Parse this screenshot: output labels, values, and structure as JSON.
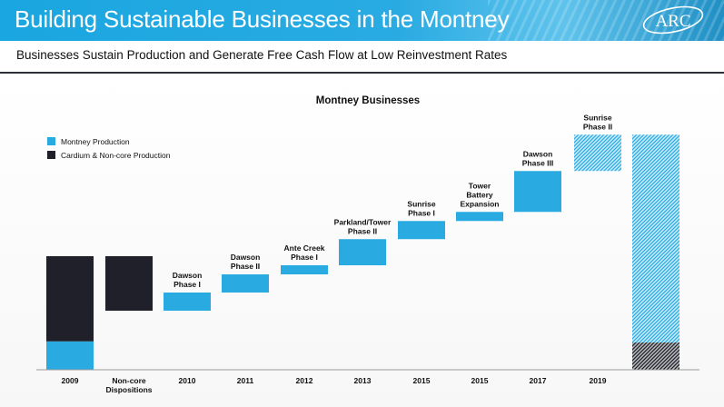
{
  "header": {
    "title": "Building Sustainable Businesses in the Montney",
    "logo_text": "ARC"
  },
  "subtitle": "Businesses Sustain Production and Generate Free Cash Flow at Low Reinvestment Rates",
  "colors": {
    "header_blue": "#1aa6e0",
    "montney_blue": "#29abe2",
    "cardium_dark": "#1f2029"
  },
  "chart_data": {
    "type": "bar",
    "subtype": "waterfall",
    "title": "Montney Businesses",
    "xlabel": "",
    "ylabel": "",
    "grid": false,
    "legend_position": "top-left",
    "legend": [
      {
        "name": "Montney Production",
        "color": "#29abe2"
      },
      {
        "name": "Cardium & Non-core Production",
        "color": "#1f2029"
      }
    ],
    "ylim": [
      0,
      100
    ],
    "categories": [
      "2009",
      "Non-core\nDispositions",
      "2010",
      "2011",
      "2012",
      "2013",
      "2015",
      "2015",
      "2017",
      "2019",
      ""
    ],
    "bars": [
      {
        "category": "2009",
        "label": "",
        "segments": [
          {
            "series": "Montney Production",
            "start": 0,
            "end": 12.5,
            "style": "solid"
          },
          {
            "series": "Cardium & Non-core Production",
            "start": 12.5,
            "end": 50,
            "style": "solid"
          }
        ]
      },
      {
        "category": "Non-core\nDispositions",
        "label": "",
        "segments": [
          {
            "series": "Cardium & Non-core Production",
            "start": 26,
            "end": 50,
            "style": "solid"
          }
        ]
      },
      {
        "category": "2010",
        "label": "Dawson\nPhase I",
        "segments": [
          {
            "series": "Montney Production",
            "start": 26,
            "end": 34,
            "style": "solid"
          }
        ]
      },
      {
        "category": "2011",
        "label": "Dawson\nPhase II",
        "segments": [
          {
            "series": "Montney Production",
            "start": 34,
            "end": 42,
            "style": "solid"
          }
        ]
      },
      {
        "category": "2012",
        "label": "Ante Creek\nPhase I",
        "segments": [
          {
            "series": "Montney Production",
            "start": 42,
            "end": 46,
            "style": "solid"
          }
        ]
      },
      {
        "category": "2013",
        "label": "Parkland/Tower\nPhase II",
        "segments": [
          {
            "series": "Montney Production",
            "start": 46,
            "end": 57.5,
            "style": "solid"
          }
        ]
      },
      {
        "category": "2015",
        "label": "Sunrise\nPhase I",
        "segments": [
          {
            "series": "Montney Production",
            "start": 57.5,
            "end": 65.5,
            "style": "solid"
          }
        ]
      },
      {
        "category": "2015",
        "label": "Tower\nBattery\nExpansion",
        "segments": [
          {
            "series": "Montney Production",
            "start": 65.5,
            "end": 69.5,
            "style": "solid"
          }
        ]
      },
      {
        "category": "2017",
        "label": "Dawson\nPhase III",
        "segments": [
          {
            "series": "Montney Production",
            "start": 69.5,
            "end": 87.5,
            "style": "solid"
          }
        ]
      },
      {
        "category": "2019",
        "label": "Sunrise\nPhase II",
        "segments": [
          {
            "series": "Montney Production",
            "start": 87.5,
            "end": 103.5,
            "style": "hatched"
          }
        ]
      },
      {
        "category": "",
        "label": "",
        "segments": [
          {
            "series": "Cardium & Non-core Production",
            "start": 0,
            "end": 12,
            "style": "hatched"
          },
          {
            "series": "Montney Production",
            "start": 12,
            "end": 103.5,
            "style": "hatched"
          }
        ]
      }
    ]
  }
}
